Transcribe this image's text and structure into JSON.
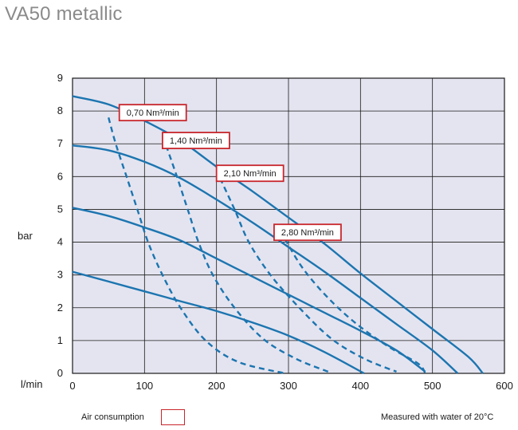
{
  "page_title": "VA50 metallic",
  "legend": {
    "air_label": "Air consumption",
    "note": "Measured with water of 20°C"
  },
  "colors": {
    "plot_bg": "#e4e4f0",
    "curve": "#1c75b0",
    "label_border": "#c8262c",
    "grid": "#1a1a1a"
  },
  "chart_data": {
    "type": "line",
    "xlabel": "l/min",
    "ylabel": "bar",
    "xlim": [
      0,
      600
    ],
    "ylim": [
      0,
      9
    ],
    "x_ticks": [
      0,
      100,
      200,
      300,
      400,
      500,
      600
    ],
    "y_ticks": [
      0,
      1,
      2,
      3,
      4,
      5,
      6,
      7,
      8,
      9
    ],
    "grid": true,
    "performance_curves": [
      {
        "points": [
          [
            0,
            3.1
          ],
          [
            50,
            2.8
          ],
          [
            100,
            2.5
          ],
          [
            150,
            2.2
          ],
          [
            200,
            1.9
          ],
          [
            250,
            1.55
          ],
          [
            300,
            1.15
          ],
          [
            350,
            0.65
          ],
          [
            405,
            0
          ]
        ]
      },
      {
        "points": [
          [
            0,
            5.05
          ],
          [
            50,
            4.8
          ],
          [
            100,
            4.45
          ],
          [
            150,
            4.05
          ],
          [
            200,
            3.5
          ],
          [
            250,
            2.95
          ],
          [
            300,
            2.4
          ],
          [
            350,
            1.85
          ],
          [
            400,
            1.3
          ],
          [
            450,
            0.7
          ],
          [
            490,
            0.05
          ]
        ]
      },
      {
        "points": [
          [
            0,
            6.95
          ],
          [
            50,
            6.8
          ],
          [
            100,
            6.45
          ],
          [
            150,
            5.95
          ],
          [
            200,
            5.3
          ],
          [
            250,
            4.6
          ],
          [
            300,
            3.85
          ],
          [
            350,
            3.1
          ],
          [
            400,
            2.3
          ],
          [
            450,
            1.5
          ],
          [
            500,
            0.7
          ],
          [
            535,
            0
          ]
        ]
      },
      {
        "points": [
          [
            0,
            8.45
          ],
          [
            50,
            8.2
          ],
          [
            100,
            7.7
          ],
          [
            150,
            7.1
          ],
          [
            200,
            6.3
          ],
          [
            250,
            5.55
          ],
          [
            300,
            4.75
          ],
          [
            350,
            3.95
          ],
          [
            400,
            3.05
          ],
          [
            450,
            2.2
          ],
          [
            500,
            1.35
          ],
          [
            550,
            0.5
          ],
          [
            570,
            0
          ]
        ]
      }
    ],
    "air_consumption_curves": [
      {
        "label": "0,70 Nm³/min",
        "label_at": [
          65,
          7.95
        ],
        "points": [
          [
            50,
            7.8
          ],
          [
            60,
            7.0
          ],
          [
            75,
            6.0
          ],
          [
            90,
            5.0
          ],
          [
            105,
            4.0
          ],
          [
            125,
            3.0
          ],
          [
            150,
            2.0
          ],
          [
            185,
            1.0
          ],
          [
            230,
            0.35
          ],
          [
            295,
            0
          ]
        ]
      },
      {
        "label": "1,40 Nm³/min",
        "label_at": [
          125,
          7.1
        ],
        "points": [
          [
            130,
            6.95
          ],
          [
            145,
            6.0
          ],
          [
            160,
            5.0
          ],
          [
            175,
            4.0
          ],
          [
            195,
            3.0
          ],
          [
            225,
            2.0
          ],
          [
            265,
            1.05
          ],
          [
            310,
            0.45
          ],
          [
            355,
            0.05
          ]
        ]
      },
      {
        "label": "2,10 Nm³/min",
        "label_at": [
          200,
          6.1
        ],
        "points": [
          [
            205,
            5.95
          ],
          [
            225,
            5.0
          ],
          [
            245,
            4.0
          ],
          [
            275,
            3.0
          ],
          [
            315,
            2.0
          ],
          [
            360,
            1.05
          ],
          [
            405,
            0.45
          ],
          [
            450,
            0.05
          ]
        ]
      },
      {
        "label": "2,80 Nm³/min",
        "label_at": [
          280,
          4.3
        ],
        "points": [
          [
            295,
            4.1
          ],
          [
            320,
            3.2
          ],
          [
            355,
            2.3
          ],
          [
            395,
            1.5
          ],
          [
            440,
            0.8
          ],
          [
            480,
            0.3
          ],
          [
            490,
            0
          ]
        ]
      }
    ]
  }
}
